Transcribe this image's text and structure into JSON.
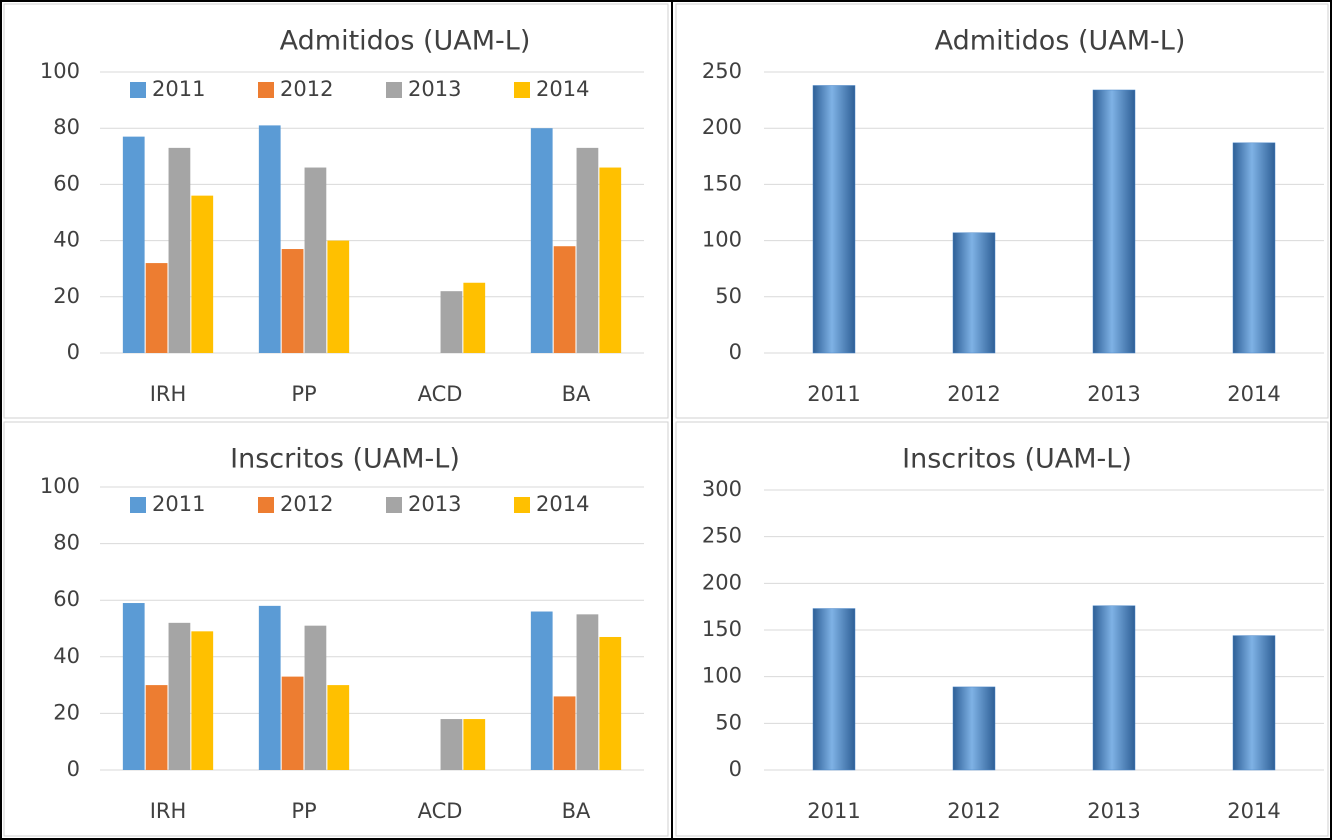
{
  "chart_data": [
    {
      "type": "grouped-bar",
      "title": "Admitidos (UAM-L)",
      "categories": [
        "IRH",
        "PP",
        "ACD",
        "BA"
      ],
      "series": [
        {
          "name": "2011",
          "color": "#5b9bd5",
          "values": [
            77,
            81,
            null,
            80
          ]
        },
        {
          "name": "2012",
          "color": "#ed7d31",
          "values": [
            32,
            37,
            null,
            38
          ]
        },
        {
          "name": "2013",
          "color": "#a5a5a5",
          "values": [
            73,
            66,
            22,
            73
          ]
        },
        {
          "name": "2014",
          "color": "#ffc000",
          "values": [
            56,
            40,
            25,
            66
          ]
        }
      ],
      "ylim": [
        0,
        100
      ],
      "yticks": [
        0,
        20,
        40,
        60,
        80,
        100
      ],
      "grid": true,
      "legend": "top"
    },
    {
      "type": "bar",
      "title": "Admitidos (UAM-L)",
      "categories": [
        "2011",
        "2012",
        "2013",
        "2014"
      ],
      "values": [
        238,
        107,
        234,
        187
      ],
      "color": "#4a86c8",
      "ylim": [
        0,
        250
      ],
      "yticks": [
        0,
        50,
        100,
        150,
        200,
        250
      ],
      "grid": true
    },
    {
      "type": "grouped-bar",
      "title": "Inscritos (UAM-L)",
      "categories": [
        "IRH",
        "PP",
        "ACD",
        "BA"
      ],
      "series": [
        {
          "name": "2011",
          "color": "#5b9bd5",
          "values": [
            59,
            58,
            null,
            56
          ]
        },
        {
          "name": "2012",
          "color": "#ed7d31",
          "values": [
            30,
            33,
            null,
            26
          ]
        },
        {
          "name": "2013",
          "color": "#a5a5a5",
          "values": [
            52,
            51,
            18,
            55
          ]
        },
        {
          "name": "2014",
          "color": "#ffc000",
          "values": [
            49,
            30,
            18,
            47
          ]
        }
      ],
      "ylim": [
        0,
        100
      ],
      "yticks": [
        0,
        20,
        40,
        60,
        80,
        100
      ],
      "grid": true,
      "legend": "top"
    },
    {
      "type": "bar",
      "title": "Inscritos (UAM-L)",
      "categories": [
        "2011",
        "2012",
        "2013",
        "2014"
      ],
      "values": [
        173,
        89,
        176,
        144
      ],
      "color": "#4a86c8",
      "ylim": [
        0,
        300
      ],
      "yticks": [
        0,
        50,
        100,
        150,
        200,
        250,
        300
      ],
      "grid": true
    }
  ]
}
